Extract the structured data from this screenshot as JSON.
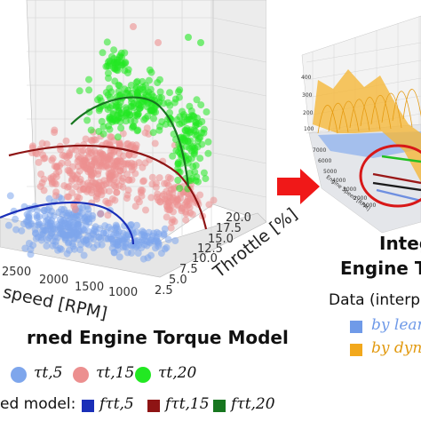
{
  "chart_data": [
    {
      "type": "scatter",
      "projection": "3d",
      "title": "rned Engine Torque Model",
      "xlabel": "speed [RPM]",
      "ylabel": "Throttle [%]",
      "x_ticks": [
        "2500",
        "2000",
        "1500",
        "1000"
      ],
      "y_ticks": [
        "2.5",
        "5.0",
        "7.5",
        "10.0",
        "12.5",
        "15.0",
        "17.5",
        "20.0"
      ],
      "series": [
        {
          "name": "τt,5",
          "color": "#7ea6ec"
        },
        {
          "name": "τt,15",
          "color": "#ec8f8f"
        },
        {
          "name": "τt,20",
          "color": "#22e822"
        }
      ],
      "model_legend_label": "ed model:",
      "models": [
        {
          "name": "fτt,5",
          "color": "#1a2fb8"
        },
        {
          "name": "fτt,15",
          "color": "#8e1414"
        },
        {
          "name": "fτt,20",
          "color": "#17761f"
        }
      ]
    },
    {
      "type": "area",
      "projection": "3d",
      "title_line1": "Integ",
      "title_line2": "Engine T",
      "xlabel": "Engine Speed [RPM]",
      "z_ticks": [
        "400",
        "300",
        "200",
        "100"
      ],
      "x_ticks": [
        "7000",
        "6000",
        "5000",
        "4000",
        "3000",
        "2000",
        "1000"
      ],
      "legend_title": "Data (interp",
      "legend": [
        {
          "name": "by lear",
          "color": "#6f9ae8"
        },
        {
          "name": "by dyn",
          "color": "#f2a81c"
        }
      ]
    }
  ],
  "colors": {
    "arrow": "#f01818",
    "highlight_ellipse": "#d81818"
  }
}
